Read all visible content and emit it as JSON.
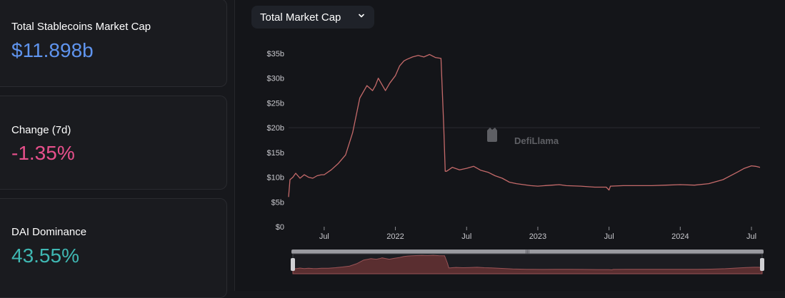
{
  "cards": {
    "total": {
      "label": "Total Stablecoins Market Cap",
      "value": "$11.898b",
      "color": "#5f94ee"
    },
    "change": {
      "label": "Change (7d)",
      "value": "-1.35%",
      "color": "#e8508c"
    },
    "dominance": {
      "label": "DAI Dominance",
      "value": "43.55%",
      "color": "#3fb8b3"
    }
  },
  "dropdown": {
    "label": "Total Market Cap",
    "icon": "chevron-down-icon"
  },
  "watermark": {
    "text": "DefiLlama",
    "icon": "llama-logo-icon"
  },
  "colors": {
    "line": "#c56a6a",
    "grid": "#2a2b30",
    "axis_text": "#c9c9ce"
  },
  "chart_data": {
    "type": "line",
    "title": "Total Market Cap",
    "ylim": [
      0,
      35
    ],
    "yticks": [
      "$0",
      "$5b",
      "$10b",
      "$15b",
      "$20b",
      "$25b",
      "$30b",
      "$35b"
    ],
    "xticks": [
      {
        "t": 2021.5,
        "label": "Jul"
      },
      {
        "t": 2022.0,
        "label": "2022"
      },
      {
        "t": 2022.5,
        "label": "Jul"
      },
      {
        "t": 2023.0,
        "label": "2023"
      },
      {
        "t": 2023.5,
        "label": "Jul"
      },
      {
        "t": 2024.0,
        "label": "2024"
      },
      {
        "t": 2024.5,
        "label": "Jul"
      }
    ],
    "xrange": [
      2021.25,
      2024.56
    ],
    "x": [
      2021.25,
      2021.26,
      2021.28,
      2021.3,
      2021.33,
      2021.36,
      2021.39,
      2021.42,
      2021.45,
      2021.48,
      2021.5,
      2021.55,
      2021.6,
      2021.65,
      2021.7,
      2021.75,
      2021.78,
      2021.8,
      2021.82,
      2021.84,
      2021.86,
      2021.88,
      2021.9,
      2021.93,
      2021.96,
      2022.0,
      2022.03,
      2022.06,
      2022.08,
      2022.12,
      2022.16,
      2022.2,
      2022.24,
      2022.28,
      2022.32,
      2022.34,
      2022.35,
      2022.36,
      2022.4,
      2022.45,
      2022.5,
      2022.55,
      2022.6,
      2022.65,
      2022.7,
      2022.75,
      2022.8,
      2022.85,
      2022.9,
      2022.95,
      2023.0,
      2023.1,
      2023.15,
      2023.2,
      2023.3,
      2023.4,
      2023.48,
      2023.5,
      2023.51,
      2023.6,
      2023.7,
      2023.8,
      2023.9,
      2024.0,
      2024.1,
      2024.2,
      2024.3,
      2024.4,
      2024.45,
      2024.5,
      2024.53,
      2024.56
    ],
    "y": [
      6.0,
      9.5,
      10.0,
      10.8,
      9.8,
      10.5,
      10.0,
      9.8,
      10.3,
      10.5,
      10.5,
      11.5,
      12.8,
      14.5,
      19.0,
      26.0,
      27.5,
      28.5,
      28.0,
      27.5,
      28.5,
      30.0,
      29.0,
      27.5,
      29.0,
      30.5,
      32.5,
      33.5,
      33.8,
      34.3,
      34.6,
      34.3,
      34.8,
      34.2,
      34.0,
      20.0,
      11.2,
      11.2,
      12.0,
      11.5,
      11.8,
      12.2,
      11.4,
      11.0,
      10.3,
      9.8,
      9.0,
      8.7,
      8.5,
      8.3,
      8.2,
      8.4,
      8.5,
      8.3,
      8.2,
      8.0,
      8.0,
      7.4,
      8.2,
      8.3,
      8.3,
      8.3,
      8.4,
      8.5,
      8.4,
      8.7,
      9.5,
      11.0,
      11.8,
      12.3,
      12.2,
      12.0
    ]
  }
}
